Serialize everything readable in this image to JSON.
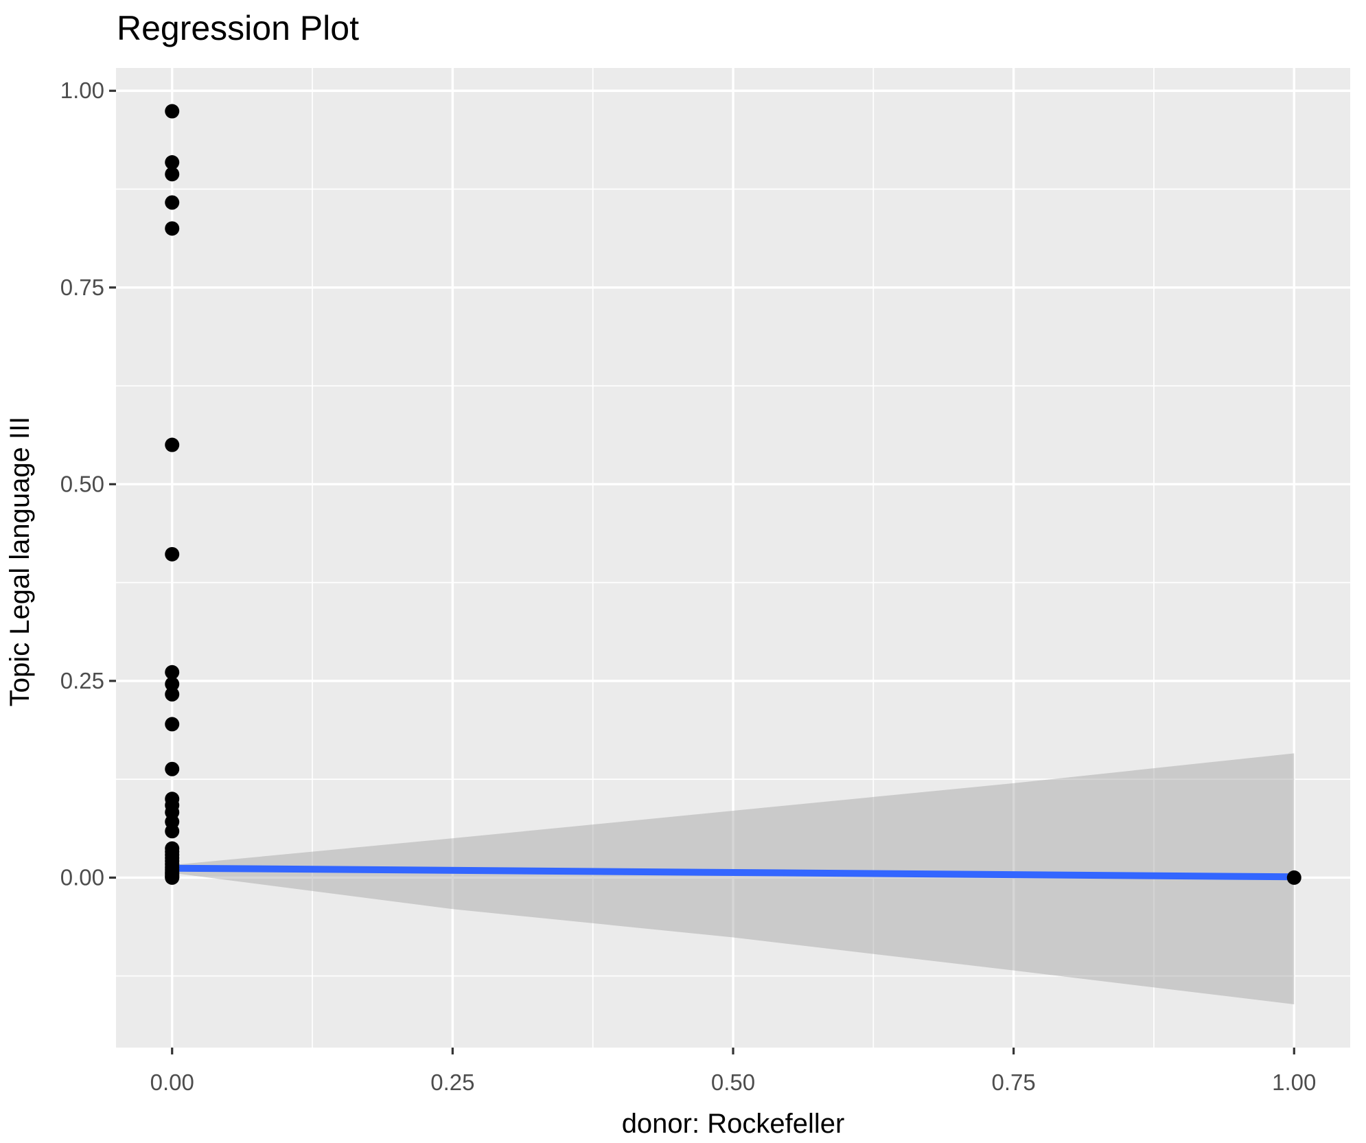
{
  "chart_data": {
    "type": "scatter",
    "title": "Regression Plot",
    "xlabel": "donor: Rockefeller",
    "ylabel": "Topic Legal language III",
    "legend": "none",
    "grid": true,
    "xlim": [
      -0.05,
      1.05
    ],
    "ylim": [
      -0.216,
      1.029
    ],
    "x_ticks": [
      0.0,
      0.25,
      0.5,
      0.75,
      1.0
    ],
    "x_tick_labels": [
      "0.00",
      "0.25",
      "0.50",
      "0.75",
      "1.00"
    ],
    "y_ticks": [
      0.0,
      0.25,
      0.5,
      0.75,
      1.0
    ],
    "y_tick_labels": [
      "0.00",
      "0.25",
      "0.50",
      "0.75",
      "1.00"
    ],
    "x_minor_ticks": [
      0.125,
      0.375,
      0.625,
      0.875
    ],
    "y_minor_ticks": [
      -0.125,
      0.125,
      0.375,
      0.625,
      0.875
    ],
    "points": [
      {
        "x": 0,
        "y": 0.974
      },
      {
        "x": 0,
        "y": 0.909
      },
      {
        "x": 0,
        "y": 0.894
      },
      {
        "x": 0,
        "y": 0.858
      },
      {
        "x": 0,
        "y": 0.825
      },
      {
        "x": 0,
        "y": 0.55
      },
      {
        "x": 0,
        "y": 0.411
      },
      {
        "x": 0,
        "y": 0.261
      },
      {
        "x": 0,
        "y": 0.246
      },
      {
        "x": 0,
        "y": 0.233
      },
      {
        "x": 0,
        "y": 0.195
      },
      {
        "x": 0,
        "y": 0.138
      },
      {
        "x": 0,
        "y": 0.1
      },
      {
        "x": 0,
        "y": 0.092
      },
      {
        "x": 0,
        "y": 0.083
      },
      {
        "x": 0,
        "y": 0.071
      },
      {
        "x": 0,
        "y": 0.059
      },
      {
        "x": 0,
        "y": 0.037
      },
      {
        "x": 0,
        "y": 0.033
      },
      {
        "x": 0,
        "y": 0.029
      },
      {
        "x": 0,
        "y": 0.025
      },
      {
        "x": 0,
        "y": 0.021
      },
      {
        "x": 0,
        "y": 0.017
      },
      {
        "x": 0,
        "y": 0.013
      },
      {
        "x": 0,
        "y": 0.01
      },
      {
        "x": 0,
        "y": 0.007
      },
      {
        "x": 0,
        "y": 0.005
      },
      {
        "x": 0,
        "y": 0.003
      },
      {
        "x": 0,
        "y": 0.001
      },
      {
        "x": 0,
        "y": 0.0
      },
      {
        "x": 1,
        "y": 0.0
      }
    ],
    "regression_line": {
      "x": [
        0,
        1
      ],
      "y": [
        0.012,
        0.001
      ]
    },
    "confidence_band": {
      "x": [
        0.0,
        0.25,
        0.5,
        0.75,
        1.0
      ],
      "upper": [
        0.016,
        0.05,
        0.085,
        0.12,
        0.158
      ],
      "lower": [
        0.006,
        -0.04,
        -0.076,
        -0.118,
        -0.161
      ]
    },
    "colors": {
      "panel_background": "#EBEBEB",
      "grid_line": "#FFFFFF",
      "band_fill": "#999999",
      "band_opacity": 0.4,
      "line_color": "#3366FF",
      "point_color": "#000000",
      "tick_mark_color": "#333333",
      "tick_label_color": "#4D4D4D",
      "title_color": "#000000",
      "axis_title_color": "#000000"
    }
  }
}
